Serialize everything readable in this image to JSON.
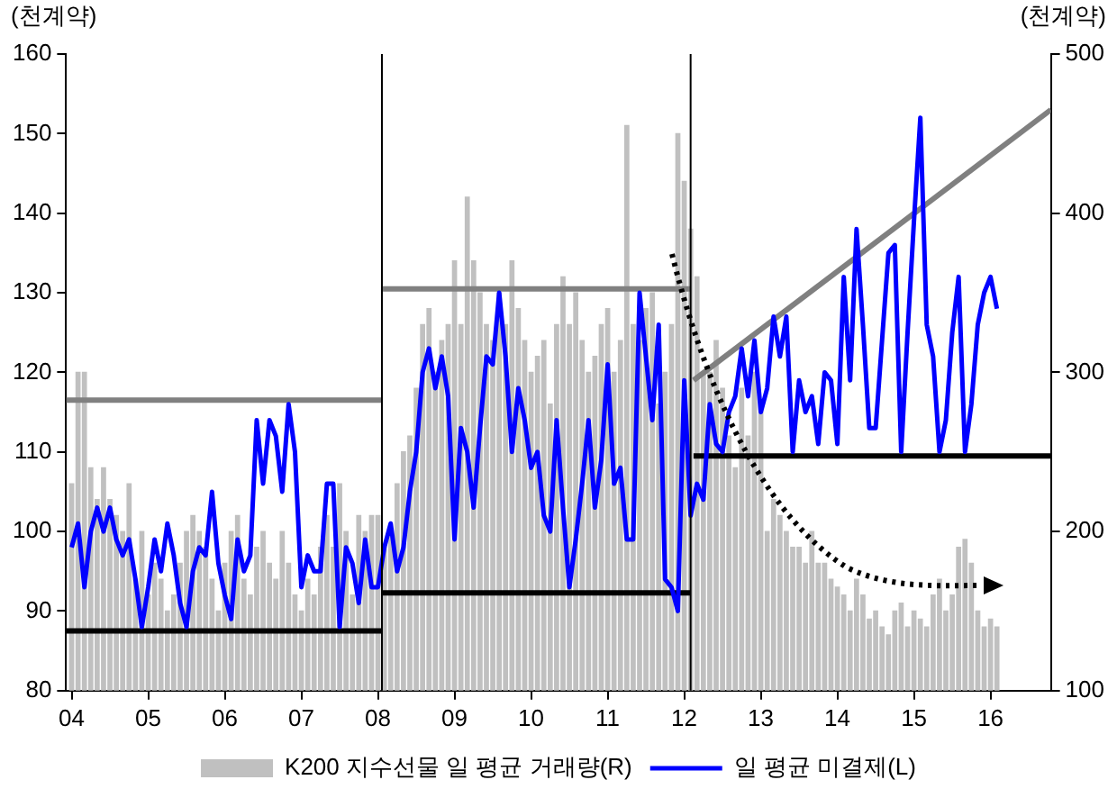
{
  "chart_data": {
    "type": "bar",
    "ylabel": "(천계약)",
    "y2label": "(천계약)",
    "legend": "bottom",
    "grid": false,
    "marker": "none",
    "x": [
      "2004-01",
      "2004-02",
      "2004-03",
      "2004-04",
      "2004-05",
      "2004-06",
      "2004-07",
      "2004-08",
      "2004-09",
      "2004-10",
      "2004-11",
      "2004-12",
      "2005-01",
      "2005-02",
      "2005-03",
      "2005-04",
      "2005-05",
      "2005-06",
      "2005-07",
      "2005-08",
      "2005-09",
      "2005-10",
      "2005-11",
      "2005-12",
      "2006-01",
      "2006-02",
      "2006-03",
      "2006-04",
      "2006-05",
      "2006-06",
      "2006-07",
      "2006-08",
      "2006-09",
      "2006-10",
      "2006-11",
      "2006-12",
      "2007-01",
      "2007-02",
      "2007-03",
      "2007-04",
      "2007-05",
      "2007-06",
      "2007-07",
      "2007-08",
      "2007-09",
      "2007-10",
      "2007-11",
      "2007-12",
      "2008-01",
      "2008-02",
      "2008-03",
      "2008-04",
      "2008-05",
      "2008-06",
      "2008-07",
      "2008-08",
      "2008-09",
      "2008-10",
      "2008-11",
      "2008-12",
      "2009-01",
      "2009-02",
      "2009-03",
      "2009-04",
      "2009-05",
      "2009-06",
      "2009-07",
      "2009-08",
      "2009-09",
      "2009-10",
      "2009-11",
      "2009-12",
      "2010-01",
      "2010-02",
      "2010-03",
      "2010-04",
      "2010-05",
      "2010-06",
      "2010-07",
      "2010-08",
      "2010-09",
      "2010-10",
      "2010-11",
      "2010-12",
      "2011-01",
      "2011-02",
      "2011-03",
      "2011-04",
      "2011-05",
      "2011-06",
      "2011-07",
      "2011-08",
      "2011-09",
      "2011-10",
      "2011-11",
      "2011-12",
      "2012-01",
      "2012-02",
      "2012-03",
      "2012-04",
      "2012-05",
      "2012-06",
      "2012-07",
      "2012-08",
      "2012-09",
      "2012-10",
      "2012-11",
      "2012-12",
      "2013-01",
      "2013-02",
      "2013-03",
      "2013-04",
      "2013-05",
      "2013-06",
      "2013-07",
      "2013-08",
      "2013-09",
      "2013-10",
      "2013-11",
      "2013-12",
      "2014-01",
      "2014-02",
      "2014-03",
      "2014-04",
      "2014-05",
      "2014-06",
      "2014-07",
      "2014-08",
      "2014-09",
      "2014-10",
      "2014-11",
      "2014-12",
      "2015-01",
      "2015-02",
      "2015-03",
      "2015-04",
      "2015-05",
      "2015-06",
      "2015-07",
      "2015-08",
      "2015-09",
      "2015-10",
      "2015-11",
      "2015-12",
      "2016-01",
      "2016-02"
    ],
    "xlim": [
      "2003-12-05",
      "2016-10-15"
    ],
    "xticks": [
      {
        "value": "2004",
        "label": "04"
      },
      {
        "value": "2005",
        "label": "05"
      },
      {
        "value": "2006",
        "label": "06"
      },
      {
        "value": "2007",
        "label": "07"
      },
      {
        "value": "2008",
        "label": "08"
      },
      {
        "value": "2009",
        "label": "09"
      },
      {
        "value": "2010",
        "label": "10"
      },
      {
        "value": "2011",
        "label": "11"
      },
      {
        "value": "2012",
        "label": "12"
      },
      {
        "value": "2013",
        "label": "13"
      },
      {
        "value": "2014",
        "label": "14"
      },
      {
        "value": "2015",
        "label": "15"
      },
      {
        "value": "2016",
        "label": "16"
      }
    ],
    "ylim": [
      80,
      160
    ],
    "yticks": [
      80,
      90,
      100,
      110,
      120,
      130,
      140,
      150,
      160
    ],
    "y2lim": [
      100,
      500
    ],
    "y2ticks": [
      100,
      200,
      300,
      400,
      500
    ],
    "series": [
      {
        "name": "K200 지수선물 일 평균 거래량(R)",
        "axis": "y2",
        "color": "#c0c0c0",
        "values": [
          230,
          300,
          300,
          240,
          220,
          240,
          220,
          210,
          200,
          230,
          170,
          200,
          160,
          180,
          170,
          150,
          160,
          180,
          200,
          210,
          200,
          190,
          170,
          150,
          180,
          200,
          210,
          170,
          160,
          190,
          200,
          180,
          170,
          200,
          180,
          160,
          150,
          170,
          160,
          190,
          210,
          190,
          230,
          200,
          160,
          210,
          200,
          210,
          210,
          190,
          200,
          230,
          250,
          260,
          290,
          330,
          340,
          300,
          320,
          330,
          370,
          330,
          410,
          370,
          350,
          330,
          320,
          350,
          330,
          370,
          340,
          320,
          300,
          310,
          320,
          280,
          330,
          360,
          330,
          350,
          320,
          300,
          310,
          330,
          340,
          300,
          320,
          455,
          330,
          320,
          340,
          350,
          280,
          300,
          330,
          450,
          420,
          390,
          360,
          300,
          300,
          320,
          290,
          260,
          240,
          290,
          260,
          300,
          280,
          200,
          220,
          210,
          200,
          190,
          190,
          180,
          200,
          180,
          180,
          170,
          165,
          160,
          150,
          170,
          160,
          145,
          150,
          140,
          135,
          150,
          155,
          140,
          150,
          145,
          140,
          160,
          170,
          150,
          160,
          190,
          195,
          180,
          150,
          140,
          145,
          140
        ]
      },
      {
        "name": "일 평균 미결제(L)",
        "type": "line",
        "axis": "y",
        "color": "#0000ff",
        "values": [
          98,
          101,
          93,
          100,
          103,
          100,
          103,
          99,
          97,
          99,
          94,
          88,
          93,
          99,
          95,
          101,
          97,
          91,
          88,
          95,
          98,
          97,
          105,
          96,
          92,
          89,
          99,
          95,
          97,
          114,
          106,
          114,
          112,
          105,
          116,
          110,
          93,
          97,
          95,
          95,
          106,
          106,
          88,
          98,
          96,
          91,
          99,
          93,
          93,
          98,
          101,
          95,
          98,
          105,
          110,
          120,
          123,
          118,
          122,
          117,
          99,
          113,
          110,
          103,
          113,
          122,
          121,
          130,
          122,
          110,
          118,
          114,
          108,
          110,
          102,
          100,
          114,
          103,
          93,
          99,
          106,
          114,
          103,
          109,
          121,
          106,
          108,
          99,
          99,
          130,
          122,
          114,
          126,
          94,
          93,
          90,
          119,
          102,
          106,
          104,
          116,
          111,
          110,
          115,
          117,
          123,
          117,
          124,
          115,
          118,
          127,
          122,
          127,
          110,
          119,
          115,
          117,
          111,
          120,
          119,
          111,
          132,
          119,
          138,
          126,
          113,
          113,
          124,
          135,
          136,
          110,
          125,
          139,
          152,
          126,
          122,
          110,
          114,
          125,
          132,
          110,
          116,
          126,
          130,
          132,
          128
        ]
      },
      {
        "type": "line",
        "axis": "y",
        "color": "#808080",
        "x": [
          "2003-12-05",
          "2008-01-20"
        ],
        "values": [
          116.5,
          116.5
        ]
      },
      {
        "type": "line",
        "axis": "y",
        "color": "#808080",
        "x": [
          "2008-01-20",
          "2012-02-01"
        ],
        "values": [
          130.5,
          130.5
        ]
      },
      {
        "type": "line",
        "axis": "y",
        "color": "#808080",
        "x": [
          "2012-02-15",
          "2016-10-15"
        ],
        "values": [
          119,
          153
        ]
      },
      {
        "type": "line",
        "axis": "y",
        "color": "#000000",
        "x": [
          "2003-12-05",
          "2008-01-20"
        ],
        "values": [
          87.5,
          87.5
        ]
      },
      {
        "type": "line",
        "axis": "y",
        "color": "#000000",
        "x": [
          "2008-01-20",
          "2012-02-01"
        ],
        "values": [
          92.3,
          92.3
        ]
      },
      {
        "type": "line",
        "axis": "y",
        "color": "#000000",
        "x": [
          "2012-02-15",
          "2016-10-15"
        ],
        "values": [
          109.5,
          109.5
        ]
      }
    ],
    "ref_lines": [
      {
        "axis": "x",
        "value": "2008-01-20",
        "color": "#000000"
      },
      {
        "axis": "x",
        "value": "2012-02-01",
        "color": "#000000"
      }
    ]
  }
}
